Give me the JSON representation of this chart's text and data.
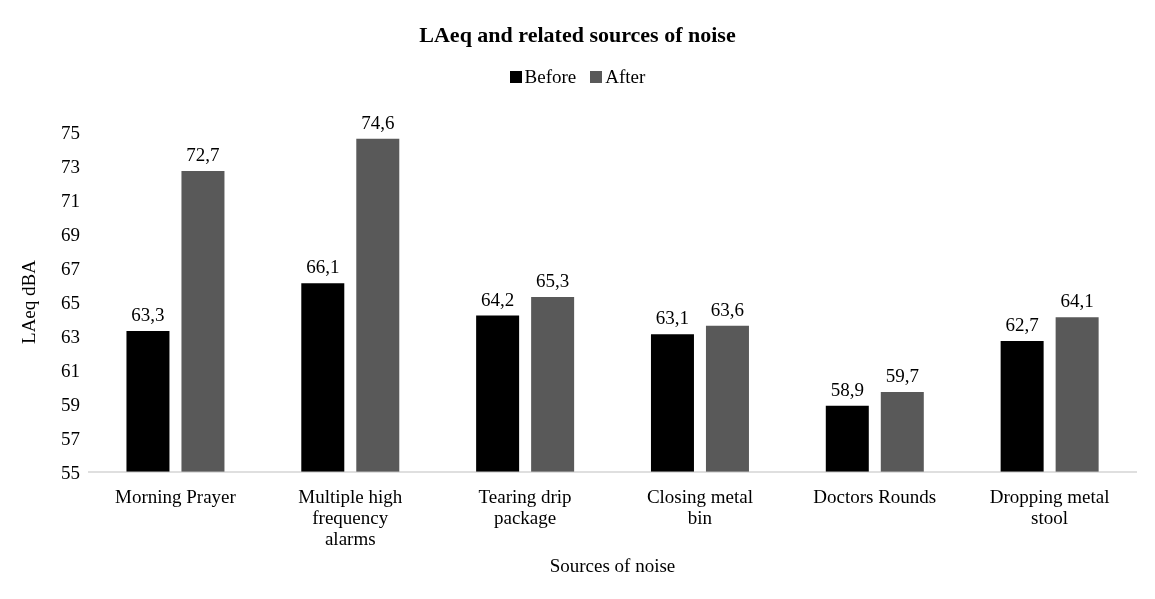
{
  "chart_data": {
    "type": "bar",
    "title": "LAeq and related sources of noise",
    "xlabel": "Sources of noise",
    "ylabel": "LAeq dBA",
    "categories": [
      "Morning Prayer",
      "Multiple high frequency alarms",
      "Tearing drip package",
      "Closing metal bin",
      "Doctors Rounds",
      "Dropping metal stool"
    ],
    "series": [
      {
        "name": "Before",
        "color": "#000000",
        "values": [
          63.3,
          66.1,
          64.2,
          63.1,
          58.9,
          62.7
        ],
        "value_labels": [
          "63,3",
          "66,1",
          "64,2",
          "63,1",
          "58,9",
          "62,7"
        ]
      },
      {
        "name": "After",
        "color": "#595959",
        "values": [
          72.7,
          74.6,
          65.3,
          63.6,
          59.7,
          64.1
        ],
        "value_labels": [
          "72,7",
          "74,6",
          "65,3",
          "63,6",
          "59,7",
          "64,1"
        ]
      }
    ],
    "ylim": [
      55,
      75
    ],
    "yticks": [
      55,
      57,
      59,
      61,
      63,
      65,
      67,
      69,
      71,
      73,
      75
    ],
    "grid": false,
    "legend": "top"
  }
}
